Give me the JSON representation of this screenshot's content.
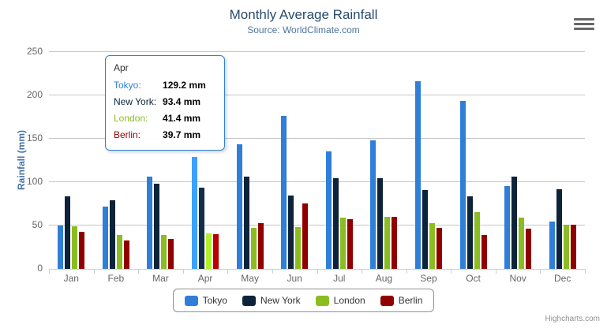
{
  "chart_data": {
    "type": "bar",
    "title": "Monthly Average Rainfall",
    "subtitle": "Source: WorldClimate.com",
    "categories": [
      "Jan",
      "Feb",
      "Mar",
      "Apr",
      "May",
      "Jun",
      "Jul",
      "Aug",
      "Sep",
      "Oct",
      "Nov",
      "Dec"
    ],
    "series": [
      {
        "name": "Tokyo",
        "color": "#2f7ed8",
        "values": [
          49.9,
          71.5,
          106.4,
          129.2,
          144.0,
          176.0,
          135.6,
          148.5,
          216.4,
          194.1,
          95.6,
          54.4
        ]
      },
      {
        "name": "New York",
        "color": "#0d233a",
        "values": [
          83.6,
          78.8,
          98.5,
          93.4,
          106.0,
          84.5,
          105.0,
          104.3,
          91.2,
          83.5,
          106.6,
          92.3
        ]
      },
      {
        "name": "London",
        "color": "#8bbc21",
        "values": [
          48.9,
          38.8,
          39.3,
          41.4,
          47.0,
          48.3,
          59.0,
          59.6,
          52.4,
          65.2,
          59.3,
          51.2
        ]
      },
      {
        "name": "Berlin",
        "color": "#910000",
        "values": [
          42.4,
          33.2,
          34.5,
          39.7,
          52.6,
          75.5,
          57.4,
          60.4,
          47.6,
          39.1,
          46.8,
          51.1
        ]
      }
    ],
    "xlabel": "",
    "ylabel": "Rainfall (mm)",
    "ylim": [
      0,
      250
    ],
    "yticks": [
      0,
      50,
      100,
      150,
      200,
      250
    ],
    "grid": true,
    "legend_position": "bottom",
    "hovered_category": "Apr"
  },
  "tooltip": {
    "header": "Apr",
    "rows": [
      {
        "label": "Tokyo:",
        "value": "129.2 mm",
        "color": "#2f7ed8"
      },
      {
        "label": "New York:",
        "value": "93.4 mm",
        "color": "#0d233a"
      },
      {
        "label": "London:",
        "value": "41.4 mm",
        "color": "#8bbc21"
      },
      {
        "label": "Berlin:",
        "value": "39.7 mm",
        "color": "#910000"
      }
    ]
  },
  "credits": "Highcharts.com",
  "icons": {
    "export_menu": "hamburger-menu-icon"
  },
  "colors": {
    "title": "#274b6d",
    "subtitle": "#4d759e",
    "axis_labels": "#666666",
    "grid": "#c6c6c6",
    "axis_line": "#c0d0e0",
    "legend_border": "#909090",
    "credits": "#909090"
  }
}
